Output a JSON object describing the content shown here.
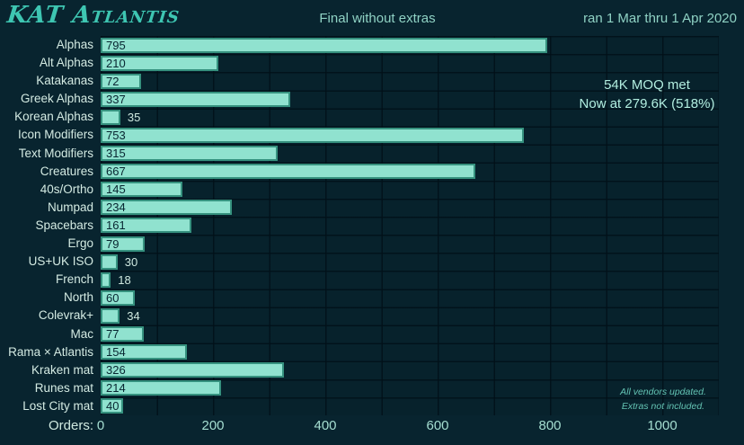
{
  "header": {
    "title": "KAT Atlantis",
    "subtitle": "Final without extras",
    "date_range": "ran 1 Mar thru 1 Apr 2020"
  },
  "annotations": {
    "moq_line1": "54K MOQ met",
    "moq_line2": "Now at 279.6K (518%)",
    "note_line1": "All vendors updated.",
    "note_line2": "Extras not included."
  },
  "axis": {
    "label": "Orders:",
    "ticks": [
      0,
      200,
      400,
      600,
      800,
      1000
    ]
  },
  "colors": {
    "background": "#08242f",
    "bar_fill": "#90e2cf",
    "bar_border": "#36927f",
    "title_accent": "#3ec6b2",
    "text_light": "#d4ebe3",
    "annotation": "#b2eee0"
  },
  "chart_data": {
    "type": "bar",
    "orientation": "horizontal",
    "title": "Final without extras",
    "xlabel": "Orders",
    "xlim": [
      0,
      1100
    ],
    "grid": true,
    "legend": false,
    "categories": [
      "Alphas",
      "Alt Alphas",
      "Katakanas",
      "Greek Alphas",
      "Korean Alphas",
      "Icon Modifiers",
      "Text Modifiers",
      "Creatures",
      "40s/Ortho",
      "Numpad",
      "Spacebars",
      "Ergo",
      "US+UK ISO",
      "French",
      "North",
      "Colevrak+",
      "Mac",
      "Rama × Atlantis",
      "Kraken mat",
      "Runes mat",
      "Lost City mat"
    ],
    "values": [
      795,
      210,
      72,
      337,
      35,
      753,
      315,
      667,
      145,
      234,
      161,
      79,
      30,
      18,
      60,
      34,
      77,
      154,
      326,
      214,
      40
    ]
  }
}
